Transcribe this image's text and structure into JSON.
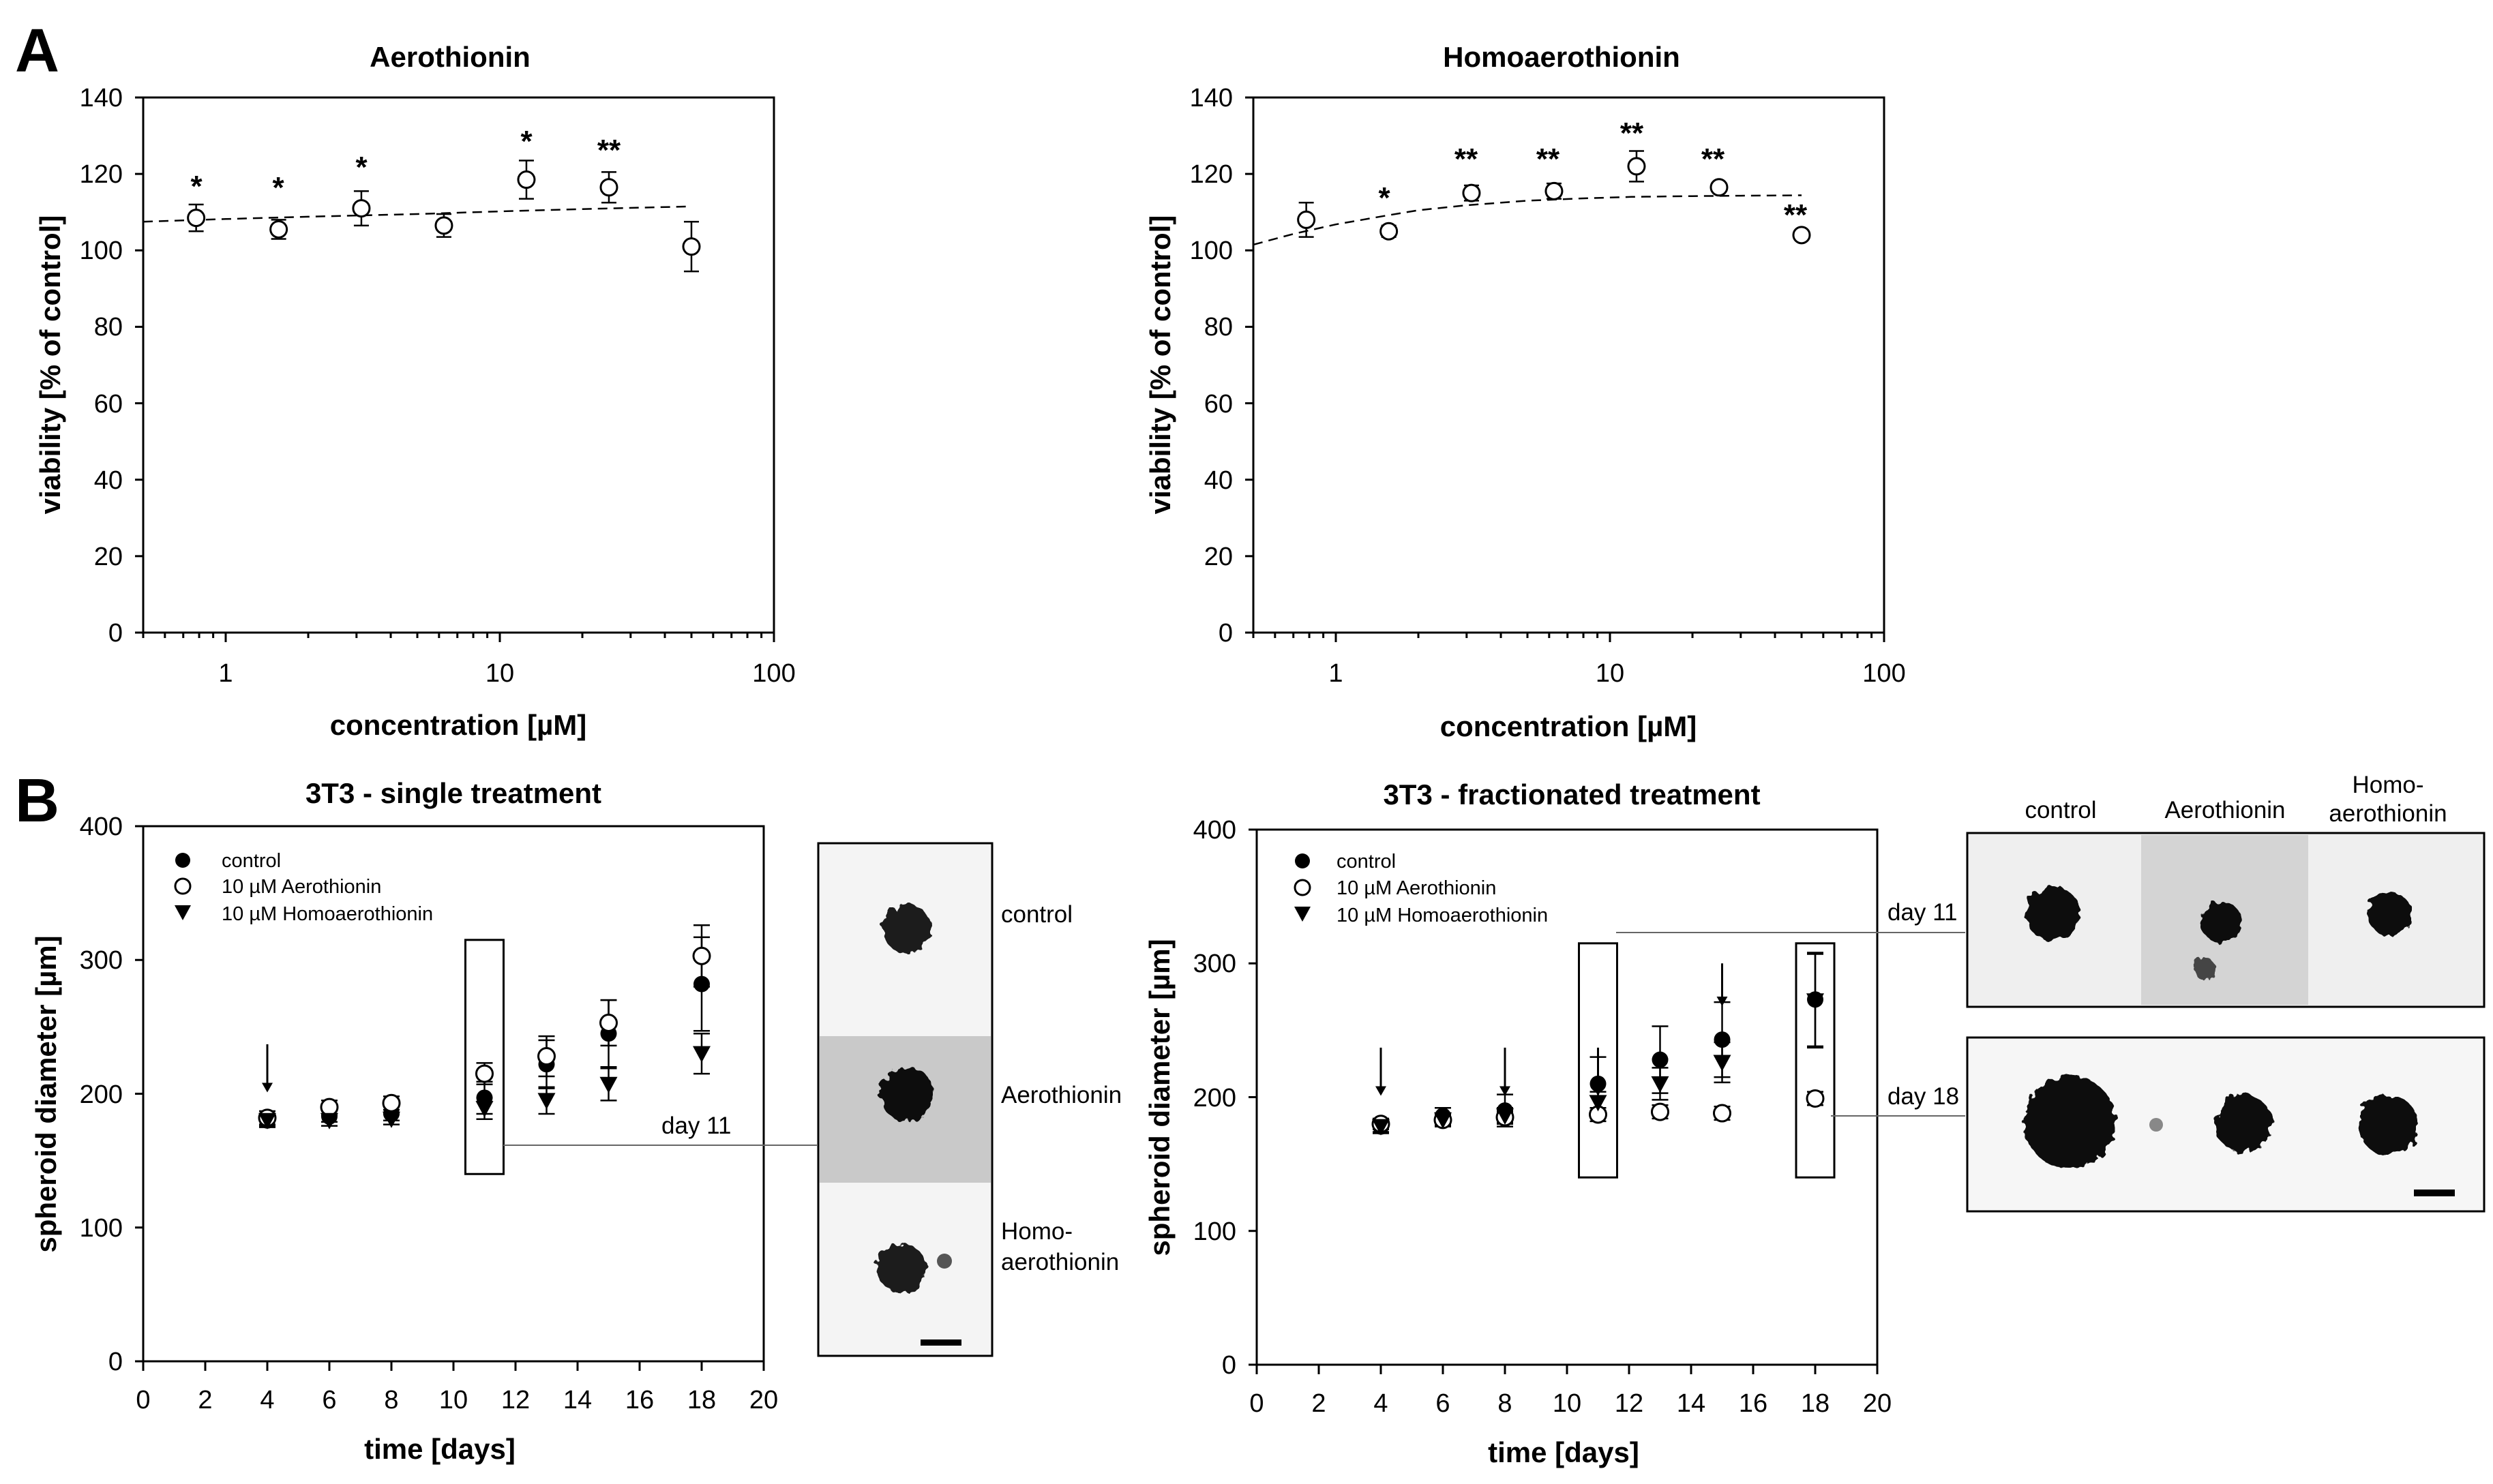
{
  "panel_labels": {
    "a": "A",
    "b": "B"
  },
  "chart_data": [
    {
      "id": "aero",
      "type": "scatter",
      "title": "Aerothionin",
      "xlabel": "concentration [µM]",
      "ylabel": "viability [% of control]",
      "xscale": "log",
      "xlim": [
        0.5,
        100
      ],
      "ylim": [
        0,
        140
      ],
      "xticks": [
        1,
        10,
        100
      ],
      "xtick_labels": [
        "1",
        "10",
        "100"
      ],
      "yticks": [
        0,
        20,
        40,
        60,
        80,
        100,
        120,
        140
      ],
      "ytick_labels": [
        "0",
        "20",
        "40",
        "60",
        "80",
        "100",
        "120",
        "140"
      ],
      "series": [
        {
          "name": "Aerothionin",
          "marker": "open-circle",
          "x": [
            0.78,
            1.56,
            3.125,
            6.25,
            12.5,
            25,
            50
          ],
          "y": [
            108.5,
            105.5,
            111,
            106.5,
            118.5,
            116.5,
            101
          ],
          "yerr": [
            3.5,
            2.5,
            4.5,
            3,
            5,
            4,
            6.5
          ],
          "significance": [
            "*",
            "*",
            "*",
            "",
            "*",
            "**",
            ""
          ]
        }
      ],
      "fit": {
        "style": "dashed",
        "x": [
          0.5,
          1,
          2,
          5,
          10,
          20,
          50
        ],
        "y": [
          107.5,
          108.2,
          108.8,
          109.5,
          110.2,
          110.8,
          111.5
        ]
      }
    },
    {
      "id": "homo",
      "type": "scatter",
      "title": "Homoaerothionin",
      "xlabel": "concentration [µM]",
      "ylabel": "viability [% of control]",
      "xscale": "log",
      "xlim": [
        0.5,
        100
      ],
      "ylim": [
        0,
        140
      ],
      "xticks": [
        1,
        10,
        100
      ],
      "xtick_labels": [
        "1",
        "10",
        "100"
      ],
      "yticks": [
        0,
        20,
        40,
        60,
        80,
        100,
        120,
        140
      ],
      "ytick_labels": [
        "0",
        "20",
        "40",
        "60",
        "80",
        "100",
        "120",
        "140"
      ],
      "series": [
        {
          "name": "Homoaerothionin",
          "marker": "open-circle",
          "x": [
            0.78,
            1.56,
            3.125,
            6.25,
            12.5,
            25,
            50
          ],
          "y": [
            108,
            105,
            115,
            115.5,
            122,
            116.5,
            104
          ],
          "yerr": [
            4.5,
            1.5,
            2,
            2,
            4,
            1,
            1
          ],
          "significance": [
            "",
            "*",
            "**",
            "**",
            "**",
            "**",
            "**"
          ]
        }
      ],
      "fit": {
        "style": "dashed",
        "x": [
          0.5,
          0.7,
          1,
          1.5,
          2,
          3,
          5,
          8,
          12,
          20,
          30,
          50
        ],
        "y": [
          101.5,
          104.3,
          106.8,
          109,
          110.5,
          111.8,
          113,
          113.6,
          114,
          114.2,
          114.3,
          114.4
        ]
      }
    },
    {
      "id": "single",
      "type": "scatter",
      "title": "3T3 - single treatment",
      "xlabel": "time [days]",
      "ylabel": "spheroid diameter [µm]",
      "xlim": [
        0,
        20
      ],
      "ylim": [
        0,
        400
      ],
      "xticks": [
        0,
        2,
        4,
        6,
        8,
        10,
        12,
        14,
        16,
        18,
        20
      ],
      "xtick_labels": [
        "0",
        "2",
        "4",
        "6",
        "8",
        "10",
        "12",
        "14",
        "16",
        "18",
        "20"
      ],
      "yticks": [
        0,
        100,
        200,
        300,
        400
      ],
      "ytick_labels": [
        "0",
        "100",
        "200",
        "300",
        "400"
      ],
      "legend": [
        "control",
        "10 µM Aerothionin",
        "10 µM Homoaerothionin"
      ],
      "legend_position": "top-left",
      "series": [
        {
          "name": "control",
          "marker": "filled-circle",
          "x": [
            4,
            6,
            8,
            11,
            13,
            15,
            18
          ],
          "y": [
            180,
            183,
            185,
            197,
            222,
            245,
            282
          ],
          "yerr": [
            5,
            4,
            5,
            12,
            18,
            25,
            35
          ]
        },
        {
          "name": "10 µM Aerothionin",
          "marker": "open-circle",
          "x": [
            4,
            6,
            8,
            11,
            13,
            15,
            18
          ],
          "y": [
            182,
            190,
            193,
            215,
            228,
            253,
            303
          ],
          "yerr": [
            5,
            5,
            5,
            8,
            15,
            17,
            23
          ]
        },
        {
          "name": "10 µM Homoaerothionin",
          "marker": "filled-triangle-down",
          "x": [
            4,
            6,
            8,
            11,
            13,
            15,
            18
          ],
          "y": [
            180,
            180,
            181,
            189,
            195,
            207,
            230
          ],
          "yerr": [
            4,
            4,
            4,
            8,
            10,
            12,
            15
          ]
        }
      ],
      "treatment_days": [
        4
      ],
      "highlight_days": [
        11
      ],
      "callout": "day 11"
    },
    {
      "id": "frac",
      "type": "scatter",
      "title": "3T3 - fractionated treatment",
      "xlabel": "time [days]",
      "ylabel": "spheroid diameter [µm]",
      "xlim": [
        0,
        20
      ],
      "ylim": [
        0,
        400
      ],
      "xticks": [
        0,
        2,
        4,
        6,
        8,
        10,
        12,
        14,
        16,
        18,
        20
      ],
      "xtick_labels": [
        "0",
        "2",
        "4",
        "6",
        "8",
        "10",
        "12",
        "14",
        "16",
        "18",
        "20"
      ],
      "yticks": [
        0,
        100,
        200,
        300,
        400
      ],
      "ytick_labels": [
        "0",
        "100",
        "200",
        "300",
        "400"
      ],
      "legend": [
        "control",
        "10 µM Aerothionin",
        "10 µM Homoaerothionin"
      ],
      "legend_position": "top-left",
      "series": [
        {
          "name": "control",
          "marker": "filled-circle",
          "x": [
            4,
            6,
            8,
            11,
            13,
            15,
            18
          ],
          "y": [
            178,
            186,
            190,
            210,
            228,
            243,
            273
          ],
          "yerr": [
            5,
            6,
            12,
            20,
            25,
            28,
            35
          ]
        },
        {
          "name": "10 µM Aerothionin",
          "marker": "open-circle",
          "x": [
            4,
            6,
            8,
            11,
            13,
            15,
            18
          ],
          "y": [
            180,
            183,
            185,
            187,
            189,
            188,
            199
          ],
          "yerr": [
            4,
            4,
            4,
            5,
            5,
            5,
            5
          ]
        },
        {
          "name": "10 µM Homoaerothionin",
          "marker": "filled-triangle-down",
          "x": [
            4,
            6,
            8,
            11,
            13,
            15,
            18
          ],
          "y": [
            178,
            183,
            186,
            196,
            210,
            226,
            272
          ],
          "yerr": [
            4,
            5,
            6,
            8,
            12,
            15,
            35
          ]
        }
      ],
      "treatment_days": [
        4,
        8,
        11,
        15
      ],
      "highlight_days": [
        11,
        18
      ],
      "callouts": [
        "day 11",
        "day 18"
      ]
    }
  ],
  "micrographs_single": {
    "labels": [
      "control",
      "Aerothionin",
      "Homo-",
      "aerothionin"
    ]
  },
  "micrographs_frac": {
    "column_labels": [
      "control",
      "Aerothionin",
      "Homo-",
      "aerothionin"
    ]
  }
}
